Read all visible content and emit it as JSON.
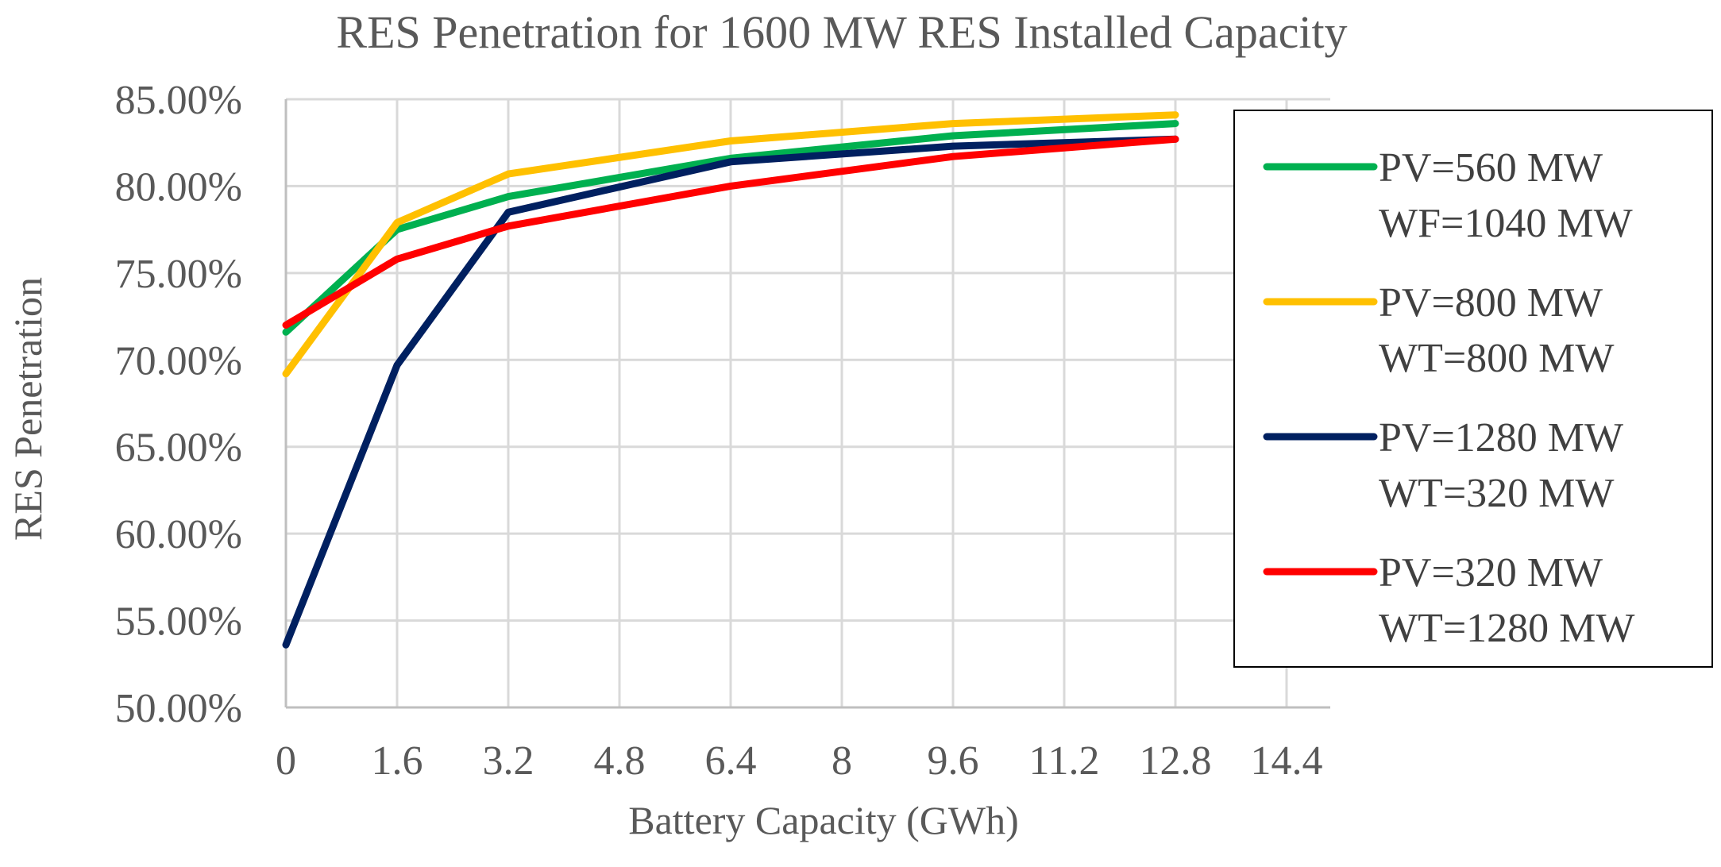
{
  "chart_data": {
    "type": "line",
    "title": "RES Penetration for 1600 MW RES Installed Capacity",
    "xlabel": "Battery Capacity (GWh)",
    "ylabel": "RES Penetration",
    "xlim": [
      0,
      14.4
    ],
    "ylim": [
      0.5,
      0.85
    ],
    "x_ticks": [
      "0",
      "1.6",
      "3.2",
      "4.8",
      "6.4",
      "8",
      "9.6",
      "11.2",
      "12.8",
      "14.4"
    ],
    "y_ticks": [
      "50.00%",
      "55.00%",
      "60.00%",
      "65.00%",
      "70.00%",
      "75.00%",
      "80.00%",
      "85.00%"
    ],
    "grid": true,
    "legend_position": "right",
    "x": [
      0,
      1.6,
      3.2,
      6.4,
      9.6,
      12.8
    ],
    "series": [
      {
        "name": "PV=560 MW WF=1040 MW",
        "legend_lines": [
          "PV=560 MW",
          "WF=1040 MW"
        ],
        "color": "#00b050",
        "values": [
          0.716,
          0.775,
          0.794,
          0.816,
          0.829,
          0.836
        ]
      },
      {
        "name": "PV=800 MW WT=800 MW",
        "legend_lines": [
          "PV=800 MW",
          "WT=800 MW"
        ],
        "color": "#ffc000",
        "values": [
          0.692,
          0.779,
          0.807,
          0.826,
          0.836,
          0.841
        ]
      },
      {
        "name": "PV=1280 MW WT=320 MW",
        "legend_lines": [
          "PV=1280 MW",
          "WT=320 MW"
        ],
        "color": "#002060",
        "values": [
          0.536,
          0.697,
          0.785,
          0.814,
          0.823,
          0.827
        ]
      },
      {
        "name": "PV=320 MW WT=1280 MW",
        "legend_lines": [
          "PV=320 MW",
          "WT=1280 MW"
        ],
        "color": "#ff0000",
        "values": [
          0.72,
          0.758,
          0.777,
          0.8,
          0.817,
          0.827
        ]
      }
    ]
  }
}
